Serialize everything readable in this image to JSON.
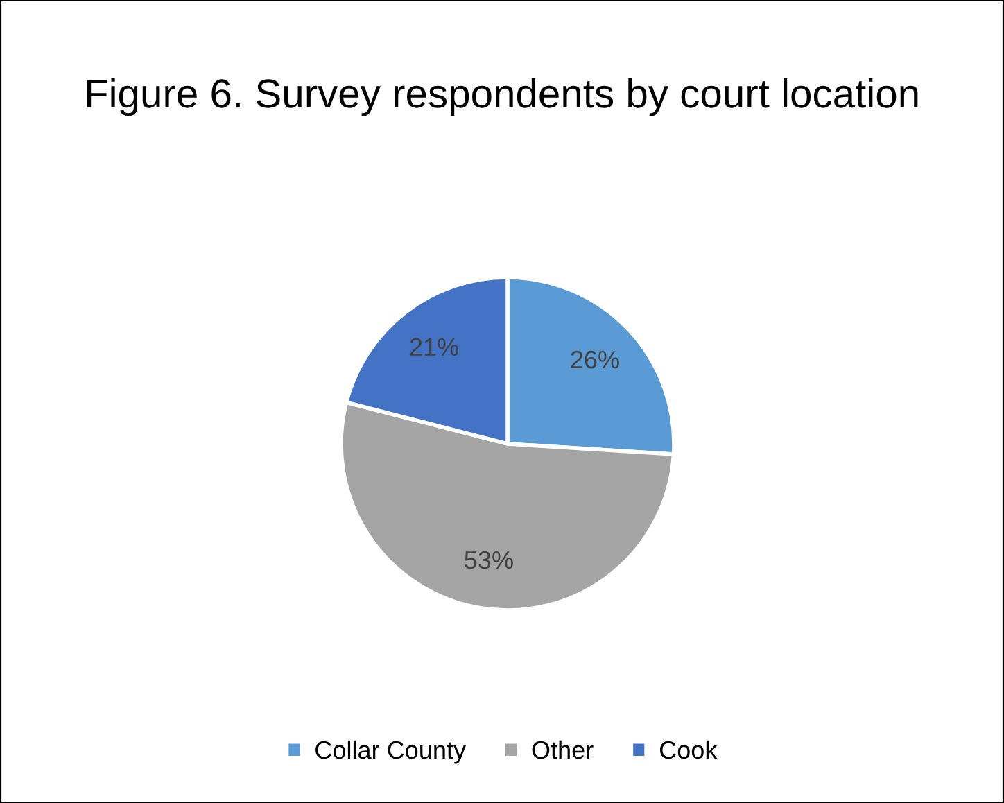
{
  "chart_data": {
    "type": "pie",
    "title": "Figure 6. Survey respondents by court location",
    "categories": [
      "Collar County",
      "Other",
      "Cook"
    ],
    "values": [
      26,
      53,
      21
    ],
    "value_labels": [
      "26%",
      "53%",
      "21%"
    ],
    "colors": [
      "#5b9bd5",
      "#a5a5a5",
      "#4472c4"
    ],
    "legend": "bottom"
  }
}
